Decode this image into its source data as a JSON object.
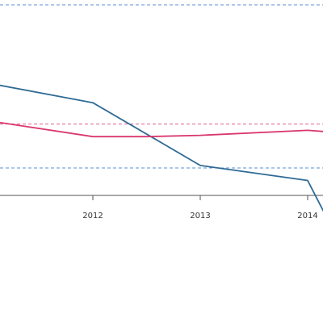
{
  "chart_data": {
    "type": "line",
    "title": "",
    "xlabel": "",
    "ylabel": "",
    "xlim": [
      2011,
      2014.15
    ],
    "ylim": [
      -0.15,
      1.55
    ],
    "x_ticks": [
      2012,
      2013,
      2014
    ],
    "x_tick_labels": [
      "2012",
      "2013",
      "2014"
    ],
    "legend": "none",
    "grid": false,
    "colors": {
      "line_blue": "#2e6a94",
      "line_pink": "#d9376e",
      "ref_blue": "#5a8fd6",
      "ref_pink": "#e06090",
      "axis": "#555555"
    },
    "reference_lines": [
      {
        "y": 1.55,
        "color_key": "ref_blue"
      },
      {
        "y": 0.6,
        "color_key": "ref_pink"
      },
      {
        "y": 0.25,
        "color_key": "ref_blue"
      }
    ],
    "series": [
      {
        "color_key": "line_blue",
        "x": [
          2011,
          2012,
          2013,
          2014,
          2014.15
        ],
        "y": [
          0.93,
          0.77,
          0.27,
          0.15,
          -0.1
        ]
      },
      {
        "color_key": "line_pink",
        "x": [
          2011,
          2012,
          2012.5,
          2013,
          2014,
          2014.15
        ],
        "y": [
          0.63,
          0.5,
          0.5,
          0.51,
          0.55,
          0.54
        ]
      }
    ]
  }
}
